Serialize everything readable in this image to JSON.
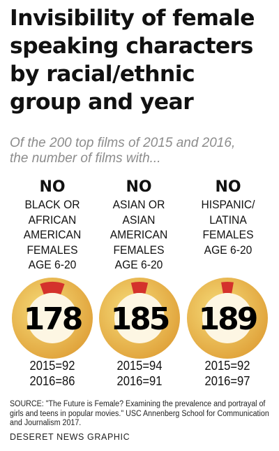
{
  "header": {
    "title_lines": [
      "Invisibility of female",
      "speaking characters",
      "by racial/ethnic",
      "group and year"
    ],
    "subtitle_lines": [
      "Of the 200 top films of 2015 and 2016,",
      "the number of films with..."
    ]
  },
  "chart_data": {
    "type": "pie",
    "total_films": 200,
    "groups": [
      {
        "no_label": "NO",
        "label_lines": [
          "BLACK OR",
          "AFRICAN",
          "AMERICAN",
          "FEMALES",
          "AGE 6-20"
        ],
        "value": 178,
        "year_lines": [
          "2015=92",
          "2016=86"
        ]
      },
      {
        "no_label": "NO",
        "label_lines": [
          "ASIAN OR",
          "ASIAN",
          "AMERICAN",
          "FEMALES",
          "AGE 6-20"
        ],
        "value": 185,
        "year_lines": [
          "2015=94",
          "2016=91"
        ]
      },
      {
        "no_label": "NO",
        "label_lines": [
          "HISPANIC/",
          "LATINA",
          "FEMALES",
          "AGE 6-20"
        ],
        "value": 189,
        "year_lines": [
          "2015=92",
          "2016=97"
        ]
      }
    ],
    "colors": {
      "ring_light": "#f6dc7a",
      "ring_dark": "#e0a23a",
      "remainder": "#d4322c",
      "inner": "#fdf6e3"
    }
  },
  "footer": {
    "source_lines": [
      "SOURCE: \"The Future is Female? Examining the prevalence and portrayal of",
      "girls and teens in popular movies.\" USC Annenberg School for Communication",
      "and Journalism 2017."
    ],
    "credit": "DESERET NEWS GRAPHIC"
  }
}
